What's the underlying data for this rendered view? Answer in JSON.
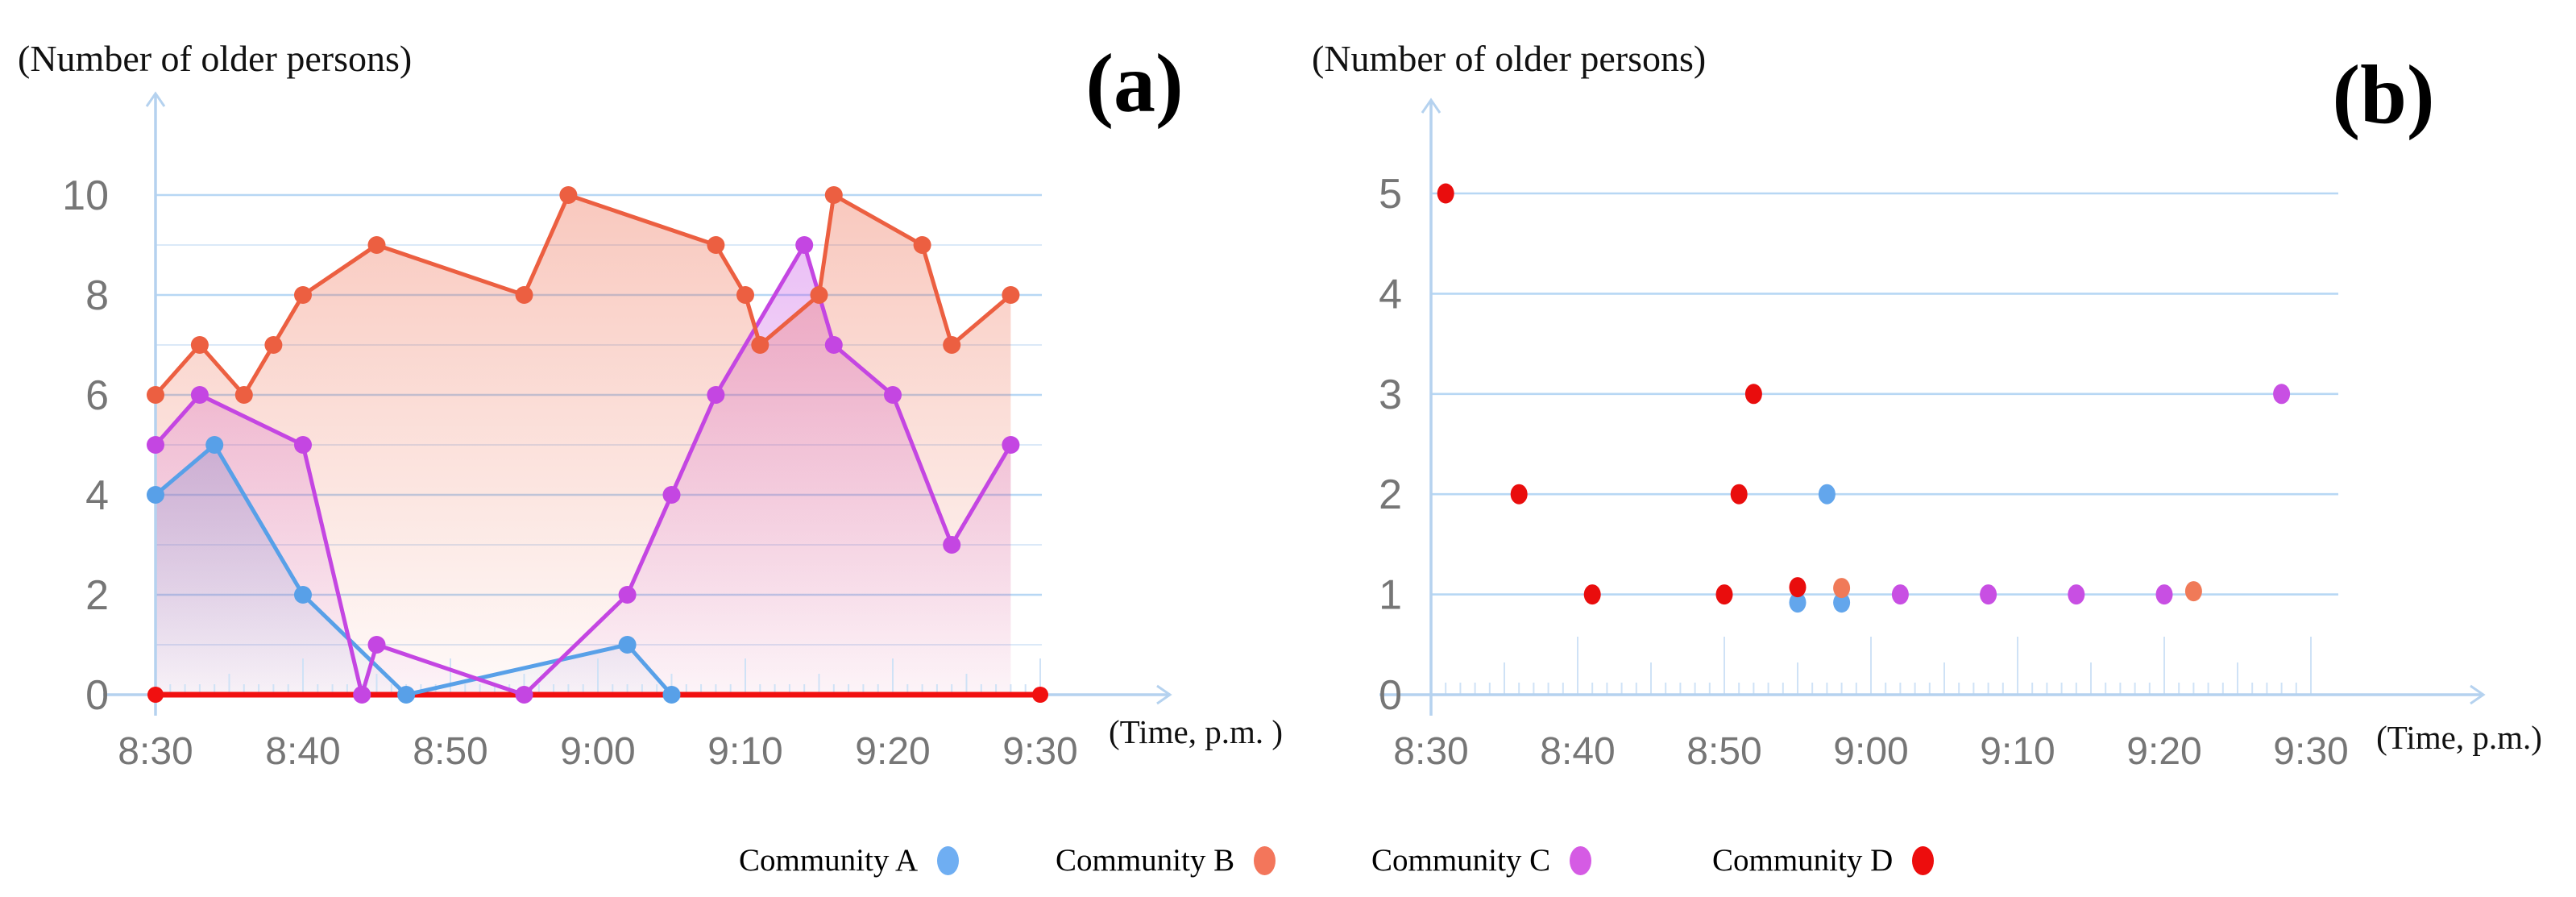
{
  "page": {
    "background": "#FFFFFF"
  },
  "legend": {
    "items": [
      {
        "label": "Community A",
        "color": "#6FAEF2"
      },
      {
        "label": "Community B",
        "color": "#F3765B"
      },
      {
        "label": "Community C",
        "color": "#D55BE4"
      },
      {
        "label": "Community D",
        "color": "#ED0D0D"
      }
    ]
  },
  "chart_data": [
    {
      "id": "a",
      "type": "line",
      "panel_label": "(a)",
      "title": "(Number of older persons)",
      "xlabel": "(Time, p.m. )",
      "point_format": "[minutes_after_8:30_pm, number_of_older_persons]",
      "x_axis": {
        "range_minutes": [
          0,
          60
        ],
        "minor_tick_every_min": 1,
        "ticks": [
          {
            "minute": 0,
            "label": "8:30"
          },
          {
            "minute": 10,
            "label": "8:40"
          },
          {
            "minute": 20,
            "label": "8:50"
          },
          {
            "minute": 30,
            "label": "9:00"
          },
          {
            "minute": 40,
            "label": "9:10"
          },
          {
            "minute": 50,
            "label": "9:20"
          },
          {
            "minute": 60,
            "label": "9:30"
          }
        ]
      },
      "y_axis": {
        "min": 0,
        "max": 10,
        "gridline_values": [
          1,
          2,
          3,
          4,
          5,
          6,
          7,
          8,
          9,
          10
        ],
        "ticks": [
          {
            "value": 0,
            "label": "0"
          },
          {
            "value": 2,
            "label": "2"
          },
          {
            "value": 4,
            "label": "4"
          },
          {
            "value": 6,
            "label": "6"
          },
          {
            "value": 8,
            "label": "8"
          },
          {
            "value": 10,
            "label": "10"
          }
        ]
      },
      "series": [
        {
          "name": "Community D",
          "color": "#F11010",
          "thick": true,
          "fill": false,
          "points": [
            [
              0,
              0
            ],
            [
              60,
              0
            ]
          ]
        },
        {
          "name": "Community A",
          "color": "#58A0E8",
          "fill": true,
          "points": [
            [
              0,
              4
            ],
            [
              4,
              5
            ],
            [
              10,
              2
            ],
            [
              17,
              0
            ],
            [
              32,
              1
            ],
            [
              35,
              0
            ]
          ]
        },
        {
          "name": "Community C",
          "color": "#C446E2",
          "fill": true,
          "points": [
            [
              0,
              5
            ],
            [
              3,
              6
            ],
            [
              10,
              5
            ],
            [
              14,
              0
            ],
            [
              15,
              1
            ],
            [
              25,
              0
            ],
            [
              32,
              2
            ],
            [
              35,
              4
            ],
            [
              38,
              6
            ],
            [
              44,
              9
            ],
            [
              46,
              7
            ],
            [
              50,
              6
            ],
            [
              54,
              3
            ],
            [
              58,
              5
            ]
          ]
        },
        {
          "name": "Community B",
          "color": "#EC5F41",
          "fill": true,
          "points": [
            [
              0,
              6
            ],
            [
              3,
              7
            ],
            [
              6,
              6
            ],
            [
              8,
              7
            ],
            [
              10,
              8
            ],
            [
              15,
              9
            ],
            [
              25,
              8
            ],
            [
              28,
              10
            ],
            [
              38,
              9
            ],
            [
              40,
              8
            ],
            [
              41,
              7
            ],
            [
              45,
              8
            ],
            [
              46,
              10
            ],
            [
              52,
              9
            ],
            [
              54,
              7
            ],
            [
              58,
              8
            ]
          ]
        }
      ]
    },
    {
      "id": "b",
      "type": "scatter",
      "panel_label": "(b)",
      "title": "(Number of older persons)",
      "xlabel": "(Time, p.m.)",
      "point_format": "[minutes_after_8:30_pm, number_of_older_persons, pixel_nudge_when_dots_overlap]",
      "x_axis": {
        "range_minutes": [
          0,
          60
        ],
        "minor_tick_every_min": 1,
        "ticks": [
          {
            "minute": 0,
            "label": "8:30"
          },
          {
            "minute": 10,
            "label": "8:40"
          },
          {
            "minute": 20,
            "label": "8:50"
          },
          {
            "minute": 30,
            "label": "9:00"
          },
          {
            "minute": 40,
            "label": "9:10"
          },
          {
            "minute": 50,
            "label": "9:20"
          },
          {
            "minute": 60,
            "label": "9:30"
          }
        ]
      },
      "y_axis": {
        "min": 0,
        "max": 5,
        "gridline_values": [
          1,
          2,
          3,
          4,
          5
        ],
        "ticks": [
          {
            "value": 0,
            "label": "0"
          },
          {
            "value": 1,
            "label": "1"
          },
          {
            "value": 2,
            "label": "2"
          },
          {
            "value": 3,
            "label": "3"
          },
          {
            "value": 4,
            "label": "4"
          },
          {
            "value": 5,
            "label": "5"
          }
        ]
      },
      "series": [
        {
          "name": "Community A",
          "color": "#63A6EC",
          "points": [
            [
              25,
              1,
              10
            ],
            [
              27,
              2,
              0
            ],
            [
              28,
              1,
              10
            ]
          ]
        },
        {
          "name": "Community C",
          "color": "#C84FE3",
          "points": [
            [
              32,
              1,
              0
            ],
            [
              38,
              1,
              0
            ],
            [
              44,
              1,
              0
            ],
            [
              50,
              1,
              0
            ],
            [
              58,
              3,
              0
            ]
          ]
        },
        {
          "name": "Community B",
          "color": "#F07A58",
          "points": [
            [
              28,
              1,
              -8
            ],
            [
              52,
              1,
              -4
            ]
          ]
        },
        {
          "name": "Community D",
          "color": "#E90D0D",
          "points": [
            [
              1,
              5,
              0
            ],
            [
              6,
              2,
              0
            ],
            [
              11,
              1,
              0
            ],
            [
              20,
              1,
              0
            ],
            [
              21,
              2,
              0
            ],
            [
              22,
              3,
              0
            ],
            [
              25,
              1,
              -9
            ]
          ]
        }
      ]
    }
  ]
}
